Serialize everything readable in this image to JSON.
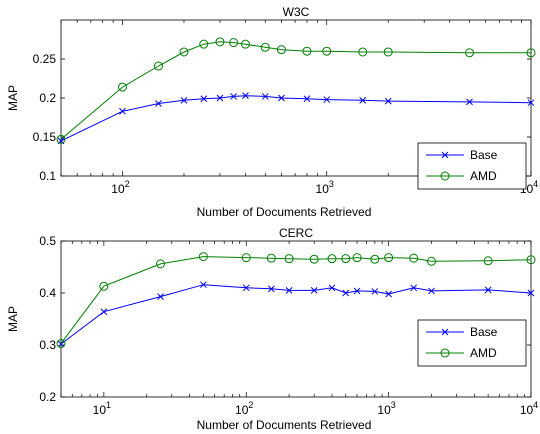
{
  "chart_data": [
    {
      "type": "line",
      "title": "W3C",
      "xlabel": "Number of Documents Retrieved",
      "ylabel": "MAP",
      "xscale": "log",
      "xlim": [
        50,
        10000
      ],
      "ylim": [
        0.1,
        0.3
      ],
      "yticks": [
        "0.1",
        "0.15",
        "0.2",
        "0.25"
      ],
      "xticks": [
        {
          "base": "10",
          "exp": "2",
          "value": 100
        },
        {
          "base": "10",
          "exp": "3",
          "value": 1000
        },
        {
          "base": "10",
          "exp": "4",
          "value": 10000
        }
      ],
      "legend": "bottom-right",
      "grid": false,
      "series": [
        {
          "name": "Base",
          "color": "#0000ff",
          "marker": "x",
          "x": [
            50,
            100,
            150,
            200,
            250,
            300,
            350,
            400,
            500,
            600,
            800,
            1000,
            1500,
            2000,
            5000,
            10000
          ],
          "y": [
            0.145,
            0.183,
            0.193,
            0.197,
            0.199,
            0.2,
            0.202,
            0.203,
            0.202,
            0.2,
            0.199,
            0.198,
            0.197,
            0.196,
            0.195,
            0.194
          ]
        },
        {
          "name": "AMD",
          "color": "#008000",
          "marker": "o",
          "x": [
            50,
            100,
            150,
            200,
            250,
            300,
            350,
            400,
            500,
            600,
            800,
            1000,
            1500,
            2000,
            5000,
            10000
          ],
          "y": [
            0.147,
            0.214,
            0.241,
            0.259,
            0.269,
            0.272,
            0.271,
            0.269,
            0.265,
            0.262,
            0.26,
            0.26,
            0.259,
            0.259,
            0.258,
            0.258
          ]
        }
      ]
    },
    {
      "type": "line",
      "title": "CERC",
      "xlabel": "Number of Documents Retrieved",
      "ylabel": "MAP",
      "xscale": "log",
      "xlim": [
        5,
        10000
      ],
      "ylim": [
        0.2,
        0.5
      ],
      "yticks": [
        "0.2",
        "0.3",
        "0.4",
        "0.5"
      ],
      "xticks": [
        {
          "base": "10",
          "exp": "1",
          "value": 10
        },
        {
          "base": "10",
          "exp": "2",
          "value": 100
        },
        {
          "base": "10",
          "exp": "3",
          "value": 1000
        },
        {
          "base": "10",
          "exp": "4",
          "value": 10000
        }
      ],
      "legend": "bottom-right",
      "grid": false,
      "series": [
        {
          "name": "Base",
          "color": "#0000ff",
          "marker": "x",
          "x": [
            5,
            10,
            25,
            50,
            100,
            150,
            200,
            300,
            400,
            500,
            600,
            800,
            1000,
            1500,
            2000,
            5000,
            10000
          ],
          "y": [
            0.302,
            0.364,
            0.393,
            0.416,
            0.41,
            0.408,
            0.405,
            0.405,
            0.41,
            0.4,
            0.404,
            0.403,
            0.398,
            0.41,
            0.404,
            0.406,
            0.4
          ]
        },
        {
          "name": "AMD",
          "color": "#008000",
          "marker": "o",
          "x": [
            5,
            10,
            25,
            50,
            100,
            150,
            200,
            300,
            400,
            500,
            600,
            800,
            1000,
            1500,
            2000,
            5000,
            10000
          ],
          "y": [
            0.303,
            0.413,
            0.456,
            0.47,
            0.468,
            0.467,
            0.466,
            0.465,
            0.466,
            0.466,
            0.468,
            0.465,
            0.468,
            0.467,
            0.461,
            0.462,
            0.464
          ]
        }
      ]
    }
  ]
}
